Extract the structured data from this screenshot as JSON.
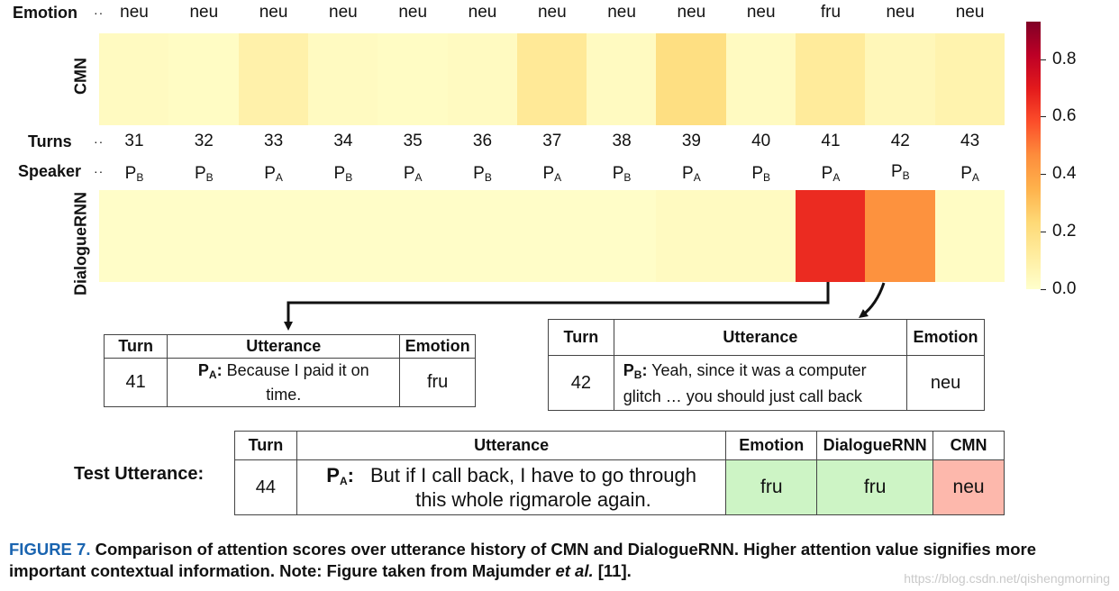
{
  "chart_data": {
    "type": "heatmap",
    "row_labels": {
      "emotion": "Emotion",
      "turns": "Turns",
      "speaker": "Speaker",
      "dots": "··"
    },
    "turns": [
      "31",
      "32",
      "33",
      "34",
      "35",
      "36",
      "37",
      "38",
      "39",
      "40",
      "41",
      "42",
      "43"
    ],
    "emotions": [
      "neu",
      "neu",
      "neu",
      "neu",
      "neu",
      "neu",
      "neu",
      "neu",
      "neu",
      "neu",
      "fru",
      "neu",
      "neu"
    ],
    "speakers": [
      {
        "p": "P",
        "s": "B"
      },
      {
        "p": "P",
        "s": "B"
      },
      {
        "p": "P",
        "s": "A"
      },
      {
        "p": "P",
        "s": "B"
      },
      {
        "p": "P",
        "s": "A"
      },
      {
        "p": "P",
        "s": "B"
      },
      {
        "p": "P",
        "s": "A"
      },
      {
        "p": "P",
        "s": "B"
      },
      {
        "p": "P",
        "s": "A"
      },
      {
        "p": "P",
        "s": "B"
      },
      {
        "p": "P",
        "s": "A"
      },
      {
        "p": "P",
        "s": "B"
      },
      {
        "p": "P",
        "s": "A"
      }
    ],
    "series": [
      {
        "name": "CMN",
        "values": [
          0.03,
          0.02,
          0.09,
          0.03,
          0.02,
          0.03,
          0.14,
          0.03,
          0.2,
          0.03,
          0.13,
          0.05,
          0.08
        ]
      },
      {
        "name": "DialogueRNN",
        "values": [
          0.01,
          0.01,
          0.01,
          0.01,
          0.01,
          0.01,
          0.01,
          0.01,
          0.03,
          0.03,
          0.66,
          0.45,
          0.02
        ]
      }
    ],
    "colorbar": {
      "ticks": [
        "0.0",
        "0.2",
        "0.4",
        "0.6",
        "0.8"
      ],
      "tick_values": [
        0,
        0.2,
        0.4,
        0.6,
        0.8
      ],
      "max": 0.93,
      "cmap": "YlOrRd"
    }
  },
  "table41": {
    "headers": [
      "Turn",
      "Utterance",
      "Emotion"
    ],
    "turn": "41",
    "speaker_p": "P",
    "speaker_s": "A",
    "speaker_colon": ":",
    "utterance": "Because I paid it on time.",
    "emotion": "fru"
  },
  "table42": {
    "headers": [
      "Turn",
      "Utterance",
      "Emotion"
    ],
    "turn": "42",
    "speaker_p": "P",
    "speaker_s": "B",
    "speaker_colon": ":",
    "utterance": "Yeah, since it was a computer glitch … you should just call back",
    "emotion": "neu"
  },
  "test": {
    "label": "Test Utterance:",
    "headers": [
      "Turn",
      "Utterance",
      "Emotion",
      "DialogueRNN",
      "CMN"
    ],
    "turn": "44",
    "speaker_p": "P",
    "speaker_s": "A",
    "speaker_colon": ":",
    "utterance_line1": "But if I call back, I have to go through",
    "utterance_line2": "this whole rigmarole again.",
    "emotion": "fru",
    "dialoguernn": "fru",
    "cmn": "neu",
    "colors": {
      "correct": "#cdf4c5",
      "wrong": "#fdb8ac"
    }
  },
  "caption": {
    "fig_label": "FIGURE 7.",
    "text_before": " Comparison of attention scores over utterance history of CMN and DialogueRNN. Higher attention value signifies more important contextual information. Note: Figure taken from Majumder ",
    "et_al": "et al.",
    "text_after": " [11]."
  },
  "watermark": "https://blog.csdn.net/qishengmorning"
}
